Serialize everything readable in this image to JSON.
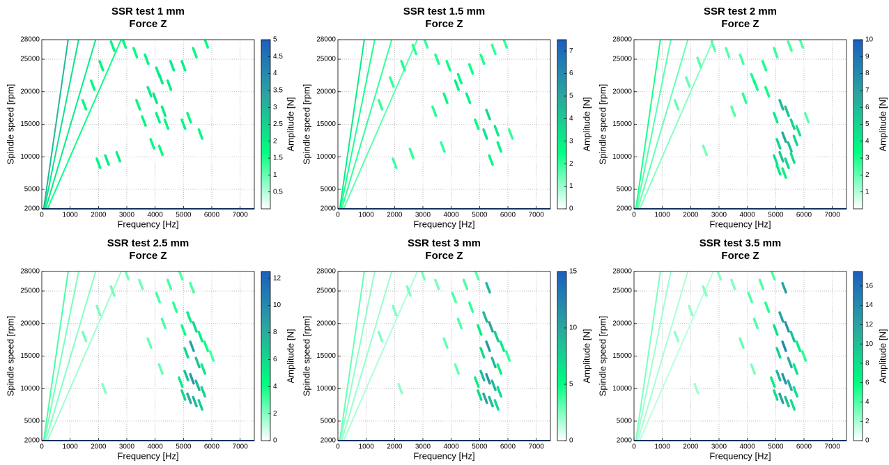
{
  "chart_data": [
    {
      "type": "heatmap",
      "title": "SSR test 1 mm",
      "subtitle": "Force Z",
      "xlabel": "Frequency [Hz]",
      "ylabel": "Spindle speed [rpm]",
      "clabel": "Amplitude [N]",
      "xlim": [
        0,
        7500
      ],
      "ylim": [
        2000,
        28000
      ],
      "xticks": [
        0,
        1000,
        2000,
        3000,
        4000,
        5000,
        6000,
        7000
      ],
      "yticks": [
        2000,
        5000,
        10000,
        15000,
        20000,
        25000,
        28000
      ],
      "clim": [
        0,
        5
      ],
      "cticks": [
        0.5,
        1,
        1.5,
        2,
        2.5,
        3,
        3.5,
        4,
        4.5,
        5
      ],
      "grid": true,
      "colormap": [
        "#ffffff",
        "#00ff80",
        "#2aa6a0",
        "#1c5fbf"
      ],
      "lines": [
        {
          "x": [
            0,
            930
          ],
          "y": [
            0,
            28000
          ],
          "value": 3
        },
        {
          "x": [
            0,
            1300
          ],
          "y": [
            0,
            28000
          ],
          "value": 2.2
        },
        {
          "x": [
            0,
            1900
          ],
          "y": [
            0,
            28000
          ],
          "value": 2
        },
        {
          "x": [
            0,
            2800
          ],
          "y": [
            0,
            28000
          ],
          "value": 1.6
        }
      ],
      "x": [
        1500,
        1800,
        2100,
        2500,
        2900,
        3300,
        3700,
        4100,
        4500,
        5000,
        5400,
        5800,
        3400,
        3800,
        4200,
        4600,
        4000,
        4300,
        3600,
        4100,
        4400,
        5200,
        5600,
        2000,
        2300,
        2700,
        3900,
        4200,
        5000
      ],
      "y": [
        18000,
        21000,
        24000,
        27000,
        27500,
        26000,
        25000,
        23000,
        21000,
        24000,
        26000,
        27500,
        18000,
        20000,
        22000,
        24000,
        19000,
        17000,
        15500,
        16000,
        15000,
        16000,
        13500,
        9000,
        9500,
        10000,
        12000,
        11000,
        15000
      ],
      "values": [
        1.8,
        1.8,
        1.9,
        1.8,
        1.7,
        1.7,
        1.9,
        2,
        2,
        1.9,
        1.8,
        1.7,
        1.8,
        2,
        2.1,
        2,
        2.2,
        2,
        1.8,
        1.9,
        1.8,
        1.8,
        1.8,
        1.8,
        2,
        1.9,
        1.7,
        1.7,
        1.8
      ]
    },
    {
      "type": "heatmap",
      "title": "SSR test 1.5 mm",
      "subtitle": "Force Z",
      "xlabel": "Frequency [Hz]",
      "ylabel": "Spindle speed [rpm]",
      "clabel": "Amplitude [N]",
      "xlim": [
        0,
        7500
      ],
      "ylim": [
        2000,
        28000
      ],
      "xticks": [
        0,
        1000,
        2000,
        3000,
        4000,
        5000,
        6000,
        7000
      ],
      "yticks": [
        2000,
        5000,
        10000,
        15000,
        20000,
        25000,
        28000
      ],
      "clim": [
        0,
        7.5
      ],
      "cticks": [
        0,
        1,
        2,
        3,
        4,
        5,
        6,
        7
      ],
      "grid": true,
      "colormap": [
        "#ffffff",
        "#00ff80",
        "#2aa6a0",
        "#1c5fbf"
      ],
      "lines": [
        {
          "x": [
            0,
            930
          ],
          "y": [
            0,
            28000
          ],
          "value": 3
        },
        {
          "x": [
            0,
            1300
          ],
          "y": [
            0,
            28000
          ],
          "value": 2.2
        },
        {
          "x": [
            0,
            1900
          ],
          "y": [
            0,
            28000
          ],
          "value": 2
        },
        {
          "x": [
            0,
            2800
          ],
          "y": [
            0,
            28000
          ],
          "value": 1.6
        }
      ],
      "x": [
        1500,
        1900,
        2300,
        2700,
        3100,
        3500,
        3900,
        4300,
        4700,
        5100,
        5500,
        5900,
        3400,
        3800,
        4200,
        4600,
        5200,
        5300,
        5600,
        5700,
        4900,
        5400,
        2000,
        2600,
        3700,
        6100
      ],
      "y": [
        18000,
        21500,
        24000,
        26500,
        27500,
        25000,
        24000,
        22000,
        23500,
        25000,
        26500,
        27500,
        17000,
        19000,
        21000,
        19000,
        13500,
        16500,
        14000,
        11500,
        15000,
        9500,
        9000,
        10500,
        11500,
        13500
      ],
      "values": [
        2,
        2,
        2.2,
        2.1,
        2,
        2.2,
        2.4,
        2.6,
        2.4,
        2.2,
        2,
        2,
        2.1,
        2.6,
        3,
        2.8,
        3.2,
        3.5,
        3,
        2.8,
        2.5,
        2.6,
        1.9,
        2,
        2,
        2
      ]
    },
    {
      "type": "heatmap",
      "title": "SSR test 2 mm",
      "subtitle": "Force Z",
      "xlabel": "Frequency [Hz]",
      "ylabel": "Spindle speed [rpm]",
      "clabel": "Amplitude [N]",
      "xlim": [
        0,
        7500
      ],
      "ylim": [
        2000,
        28000
      ],
      "xticks": [
        0,
        1000,
        2000,
        3000,
        4000,
        5000,
        6000,
        7000
      ],
      "yticks": [
        2000,
        5000,
        10000,
        15000,
        20000,
        25000,
        28000
      ],
      "clim": [
        0,
        10
      ],
      "cticks": [
        1,
        2,
        3,
        4,
        5,
        6,
        7,
        8,
        9,
        10
      ],
      "grid": true,
      "colormap": [
        "#ffffff",
        "#00ff80",
        "#2aa6a0",
        "#1c5fbf"
      ],
      "lines": [
        {
          "x": [
            0,
            930
          ],
          "y": [
            0,
            28000
          ],
          "value": 3
        },
        {
          "x": [
            0,
            1300
          ],
          "y": [
            0,
            28000
          ],
          "value": 2.2
        },
        {
          "x": [
            0,
            1900
          ],
          "y": [
            0,
            28000
          ],
          "value": 2
        },
        {
          "x": [
            0,
            2800
          ],
          "y": [
            0,
            28000
          ],
          "value": 1.6
        }
      ],
      "x": [
        1500,
        1900,
        2300,
        2800,
        3300,
        3800,
        4200,
        4600,
        5000,
        5500,
        5900,
        3500,
        3900,
        4300,
        4700,
        5000,
        5200,
        5400,
        5600,
        5800,
        5100,
        5300,
        5500,
        5700,
        5000,
        5200,
        5400,
        5600,
        5100,
        5300,
        6100,
        2500
      ],
      "y": [
        18000,
        21500,
        24500,
        27000,
        26000,
        25000,
        22000,
        24000,
        26000,
        27000,
        27500,
        17000,
        19000,
        21000,
        20000,
        16000,
        18000,
        17000,
        15000,
        14000,
        12000,
        13000,
        11500,
        12500,
        9500,
        10000,
        9000,
        9800,
        8000,
        7500,
        16000,
        11000
      ],
      "values": [
        2,
        2,
        2.2,
        2.2,
        2.2,
        2.4,
        3,
        3,
        2.6,
        2.4,
        2.2,
        2.2,
        2.8,
        3.2,
        3.2,
        4,
        6,
        5.5,
        5,
        4.2,
        5,
        6.5,
        5.5,
        4.8,
        4.5,
        5.5,
        5,
        4.5,
        4,
        3.8,
        2.2,
        1.8
      ]
    },
    {
      "type": "heatmap",
      "title": "SSR test 2.5 mm",
      "subtitle": "Force Z",
      "xlabel": "Frequency [Hz]",
      "ylabel": "Spindle speed [rpm]",
      "clabel": "Amplitude [N]",
      "xlim": [
        0,
        7500
      ],
      "ylim": [
        2000,
        28000
      ],
      "xticks": [
        0,
        1000,
        2000,
        3000,
        4000,
        5000,
        6000,
        7000
      ],
      "yticks": [
        2000,
        5000,
        10000,
        15000,
        20000,
        25000,
        28000
      ],
      "clim": [
        0,
        12.5
      ],
      "cticks": [
        0,
        2,
        4,
        6,
        8,
        10,
        12
      ],
      "grid": true,
      "colormap": [
        "#ffffff",
        "#00ff80",
        "#2aa6a0",
        "#1c5fbf"
      ],
      "lines": [
        {
          "x": [
            0,
            930
          ],
          "y": [
            0,
            28000
          ],
          "value": 3
        },
        {
          "x": [
            0,
            1300
          ],
          "y": [
            0,
            28000
          ],
          "value": 2.2
        },
        {
          "x": [
            0,
            1900
          ],
          "y": [
            0,
            28000
          ],
          "value": 2
        },
        {
          "x": [
            0,
            2800
          ],
          "y": [
            0,
            28000
          ],
          "value": 1.6
        }
      ],
      "x": [
        1500,
        2000,
        2500,
        3000,
        3500,
        4100,
        4500,
        4900,
        5300,
        3800,
        4300,
        4700,
        5000,
        5200,
        5400,
        5600,
        5800,
        6000,
        5100,
        5300,
        5500,
        5700,
        4900,
        5100,
        5300,
        5500,
        5700,
        5000,
        5200,
        5400,
        5600,
        2200,
        4200
      ],
      "y": [
        18000,
        22000,
        25000,
        27500,
        26000,
        24000,
        26000,
        27500,
        25500,
        17000,
        20000,
        22500,
        19000,
        21000,
        19500,
        18000,
        16500,
        15000,
        15500,
        16500,
        14000,
        13000,
        11000,
        12000,
        11500,
        10500,
        9500,
        9000,
        8500,
        8000,
        7500,
        10000,
        13000
      ],
      "values": [
        2.2,
        2.2,
        2.3,
        2.3,
        2.3,
        3,
        3,
        2.8,
        3,
        2.5,
        3,
        3.5,
        4,
        5,
        6,
        5,
        4,
        3,
        6,
        8.5,
        7,
        5,
        5,
        7,
        9,
        7.5,
        6,
        6,
        8,
        7.5,
        6.5,
        2,
        2.5
      ]
    },
    {
      "type": "heatmap",
      "title": "SSR test 3 mm",
      "subtitle": "Force Z",
      "xlabel": "Frequency [Hz]",
      "ylabel": "Spindle speed [rpm]",
      "clabel": "Amplitude [N]",
      "xlim": [
        0,
        7500
      ],
      "ylim": [
        2000,
        28000
      ],
      "xticks": [
        0,
        1000,
        2000,
        3000,
        4000,
        5000,
        6000,
        7000
      ],
      "yticks": [
        2000,
        5000,
        10000,
        15000,
        20000,
        25000,
        28000
      ],
      "clim": [
        0,
        15
      ],
      "cticks": [
        0,
        5,
        10,
        15
      ],
      "grid": true,
      "colormap": [
        "#ffffff",
        "#00ff80",
        "#2aa6a0",
        "#1c5fbf"
      ],
      "lines": [
        {
          "x": [
            0,
            930
          ],
          "y": [
            0,
            28000
          ],
          "value": 3
        },
        {
          "x": [
            0,
            1300
          ],
          "y": [
            0,
            28000
          ],
          "value": 2.2
        },
        {
          "x": [
            0,
            1900
          ],
          "y": [
            0,
            28000
          ],
          "value": 2
        },
        {
          "x": [
            0,
            2800
          ],
          "y": [
            0,
            28000
          ],
          "value": 1.6
        }
      ],
      "x": [
        1500,
        2000,
        2500,
        3000,
        3500,
        4100,
        4500,
        4900,
        5300,
        3800,
        4300,
        4700,
        5000,
        5200,
        5400,
        5600,
        5800,
        6000,
        5100,
        5300,
        5500,
        5700,
        4900,
        5100,
        5300,
        5500,
        5700,
        5000,
        5200,
        5400,
        5600,
        2200,
        4200
      ],
      "y": [
        18000,
        22000,
        25000,
        27500,
        26000,
        24000,
        26000,
        27500,
        25500,
        17000,
        20000,
        22500,
        19000,
        21000,
        19500,
        18000,
        16500,
        15000,
        15500,
        16500,
        14000,
        13000,
        11000,
        12000,
        11500,
        10500,
        9500,
        9000,
        8500,
        8000,
        7500,
        10000,
        13000
      ],
      "values": [
        2.5,
        2.5,
        2.6,
        2.6,
        2.6,
        3.5,
        3.5,
        3.2,
        9,
        3,
        3.5,
        4,
        6,
        9,
        10,
        8,
        6,
        4,
        7,
        11,
        9,
        6,
        6,
        9,
        11,
        9,
        7,
        7,
        10,
        9,
        7,
        2.2,
        3
      ]
    },
    {
      "type": "heatmap",
      "title": "SSR test 3.5 mm",
      "subtitle": "Force Z",
      "xlabel": "Frequency [Hz]",
      "ylabel": "Spindle speed [rpm]",
      "clabel": "Amplitude [N]",
      "xlim": [
        0,
        7500
      ],
      "ylim": [
        2000,
        28000
      ],
      "xticks": [
        0,
        1000,
        2000,
        3000,
        4000,
        5000,
        6000,
        7000
      ],
      "yticks": [
        2000,
        5000,
        10000,
        15000,
        20000,
        25000,
        28000
      ],
      "clim": [
        0,
        17.5
      ],
      "cticks": [
        0,
        2,
        4,
        6,
        8,
        10,
        12,
        14,
        16
      ],
      "grid": true,
      "colormap": [
        "#ffffff",
        "#00ff80",
        "#2aa6a0",
        "#1c5fbf"
      ],
      "lines": [
        {
          "x": [
            0,
            930
          ],
          "y": [
            0,
            28000
          ],
          "value": 3
        },
        {
          "x": [
            0,
            1300
          ],
          "y": [
            0,
            28000
          ],
          "value": 2.2
        },
        {
          "x": [
            0,
            1900
          ],
          "y": [
            0,
            28000
          ],
          "value": 2
        },
        {
          "x": [
            0,
            2800
          ],
          "y": [
            0,
            28000
          ],
          "value": 1.6
        }
      ],
      "x": [
        1500,
        2000,
        2500,
        3000,
        3500,
        4100,
        4500,
        4900,
        5300,
        3800,
        4300,
        4700,
        5000,
        5200,
        5400,
        5600,
        5800,
        6000,
        5100,
        5300,
        5500,
        5700,
        4900,
        5100,
        5300,
        5500,
        5700,
        5000,
        5200,
        5400,
        5600,
        2200,
        4200
      ],
      "y": [
        18000,
        22000,
        25000,
        27500,
        26000,
        24000,
        26000,
        27500,
        25500,
        17000,
        20000,
        22500,
        19000,
        21000,
        19500,
        18000,
        16500,
        15000,
        15500,
        16500,
        14000,
        13000,
        11000,
        12000,
        11500,
        10500,
        9500,
        9000,
        8500,
        8000,
        7500,
        10000,
        13000
      ],
      "values": [
        2.5,
        2.5,
        2.8,
        2.8,
        2.8,
        4,
        4,
        4,
        12,
        3.5,
        4,
        5,
        8,
        12,
        13,
        10,
        7,
        5,
        9,
        14,
        11,
        8,
        7,
        11,
        13,
        11,
        8,
        8,
        12,
        10,
        8,
        2.2,
        3
      ]
    }
  ]
}
